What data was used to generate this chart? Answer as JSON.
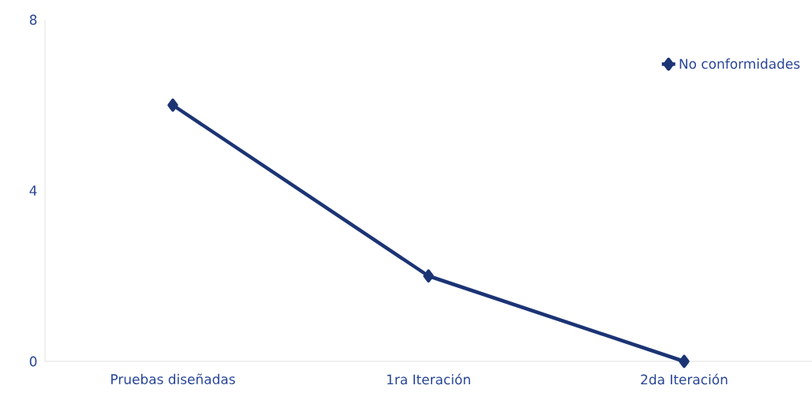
{
  "chart_data": {
    "type": "line",
    "categories": [
      "Pruebas diseñadas",
      "1ra Iteración",
      "2da Iteración"
    ],
    "series": [
      {
        "name": "No conformidades",
        "color": "#1b3474",
        "values": [
          6,
          2,
          0
        ]
      }
    ],
    "ylim": [
      0,
      8
    ],
    "yticks": [
      0,
      4,
      8
    ],
    "grid": false,
    "legend": "top right",
    "marker": "diamond",
    "line_style": "solid"
  }
}
